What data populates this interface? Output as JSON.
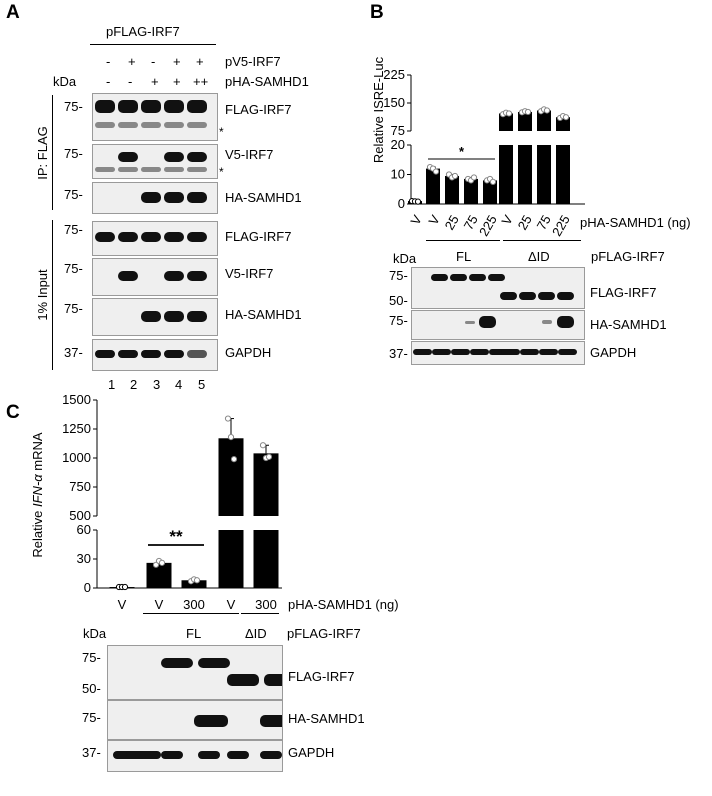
{
  "panelA": {
    "letter": "A",
    "header": "pFLAG-IRF7",
    "row_v5_label": "pV5-IRF7",
    "row_ha_label": "pHA-SAMHD1",
    "kda": "kDa",
    "v5_signs": [
      "-",
      "+",
      "-",
      "+",
      "+"
    ],
    "ha_signs": [
      "-",
      "-",
      "+",
      "+",
      "++"
    ],
    "ip_label": "IP: FLAG",
    "input_label": "1% Input",
    "lanes": [
      "1",
      "2",
      "3",
      "4",
      "5"
    ],
    "asterisk": "*",
    "blots": [
      {
        "marker": "75-",
        "label": "FLAG-IRF7"
      },
      {
        "marker": "75-",
        "label": "V5-IRF7"
      },
      {
        "marker": "75-",
        "label": "HA-SAMHD1"
      },
      {
        "marker": "75-",
        "label": "FLAG-IRF7"
      },
      {
        "marker": "75-",
        "label": "V5-IRF7"
      },
      {
        "marker": "75-",
        "label": "HA-SAMHD1"
      },
      {
        "marker": "37-",
        "label": "GAPDH"
      }
    ]
  },
  "panelB": {
    "letter": "B",
    "xlabel": "pHA-SAMHD1 (ng)",
    "kda": "kDa",
    "group_fl": "FL",
    "group_did": "ΔID",
    "plasmid": "pFLAG-IRF7",
    "sig": "*",
    "blots": [
      {
        "markers": [
          "75-",
          "50-"
        ],
        "label": "FLAG-IRF7"
      },
      {
        "markers": [
          "75-"
        ],
        "label": "HA-SAMHD1"
      },
      {
        "markers": [
          "37-"
        ],
        "label": "GAPDH"
      }
    ]
  },
  "panelC": {
    "letter": "C",
    "xlabel": "pHA-SAMHD1 (ng)",
    "kda": "kDa",
    "group_fl": "FL",
    "group_did": "ΔID",
    "plasmid": "pFLAG-IRF7",
    "sig": "**",
    "blots": [
      {
        "markers": [
          "75-",
          "50-"
        ],
        "label": "FLAG-IRF7"
      },
      {
        "markers": [
          "75-"
        ],
        "label": "HA-SAMHD1"
      },
      {
        "markers": [
          "37-"
        ],
        "label": "GAPDH"
      }
    ]
  },
  "chart_data": [
    {
      "type": "bar",
      "ylabel": "Relative ISRE-Luc",
      "categories": [
        "V",
        "V",
        "25",
        "75",
        "225",
        "V",
        "25",
        "75",
        "225"
      ],
      "values": [
        1,
        12,
        9.5,
        8.5,
        8,
        122,
        126,
        130,
        112
      ],
      "ylim_lower": [
        0,
        20
      ],
      "ylim_upper": [
        75,
        225
      ],
      "yticks_lower": [
        0,
        10,
        20
      ],
      "yticks_upper": [
        75,
        150,
        225
      ],
      "points": [
        [
          1,
          0.9,
          0.8
        ],
        [
          12.5,
          12,
          11
        ],
        [
          10,
          9,
          9.5
        ],
        [
          8.5,
          8,
          9
        ],
        [
          8,
          8.5,
          7.5
        ],
        [
          120,
          124,
          122
        ],
        [
          125,
          128,
          126
        ],
        [
          128,
          133,
          130
        ],
        [
          110,
          115,
          112
        ]
      ],
      "groups": [
        {
          "name": "FL",
          "indices": [
            1,
            2,
            3,
            4
          ]
        },
        {
          "name": "ΔID",
          "indices": [
            5,
            6,
            7,
            8
          ]
        }
      ],
      "bar_color": "#000000"
    },
    {
      "type": "bar",
      "ylabel": "Relative IFN-α mRNA",
      "categories": [
        "V",
        "V",
        "300",
        "V",
        "300"
      ],
      "values": [
        1,
        26,
        8,
        1170,
        1040
      ],
      "ylim_lower": [
        0,
        60
      ],
      "ylim_upper": [
        500,
        1500
      ],
      "yticks_lower": [
        0,
        30,
        60
      ],
      "yticks_upper": [
        500,
        750,
        1000,
        1250,
        1500
      ],
      "points": [
        [
          1,
          1,
          1
        ],
        [
          24,
          28,
          26
        ],
        [
          7,
          9,
          8
        ],
        [
          1340,
          1180,
          990
        ],
        [
          1110,
          1000,
          1010
        ]
      ],
      "groups": [
        {
          "name": "FL",
          "indices": [
            1,
            2
          ]
        },
        {
          "name": "ΔID",
          "indices": [
            3,
            4
          ]
        }
      ],
      "bar_color": "#000000"
    }
  ]
}
